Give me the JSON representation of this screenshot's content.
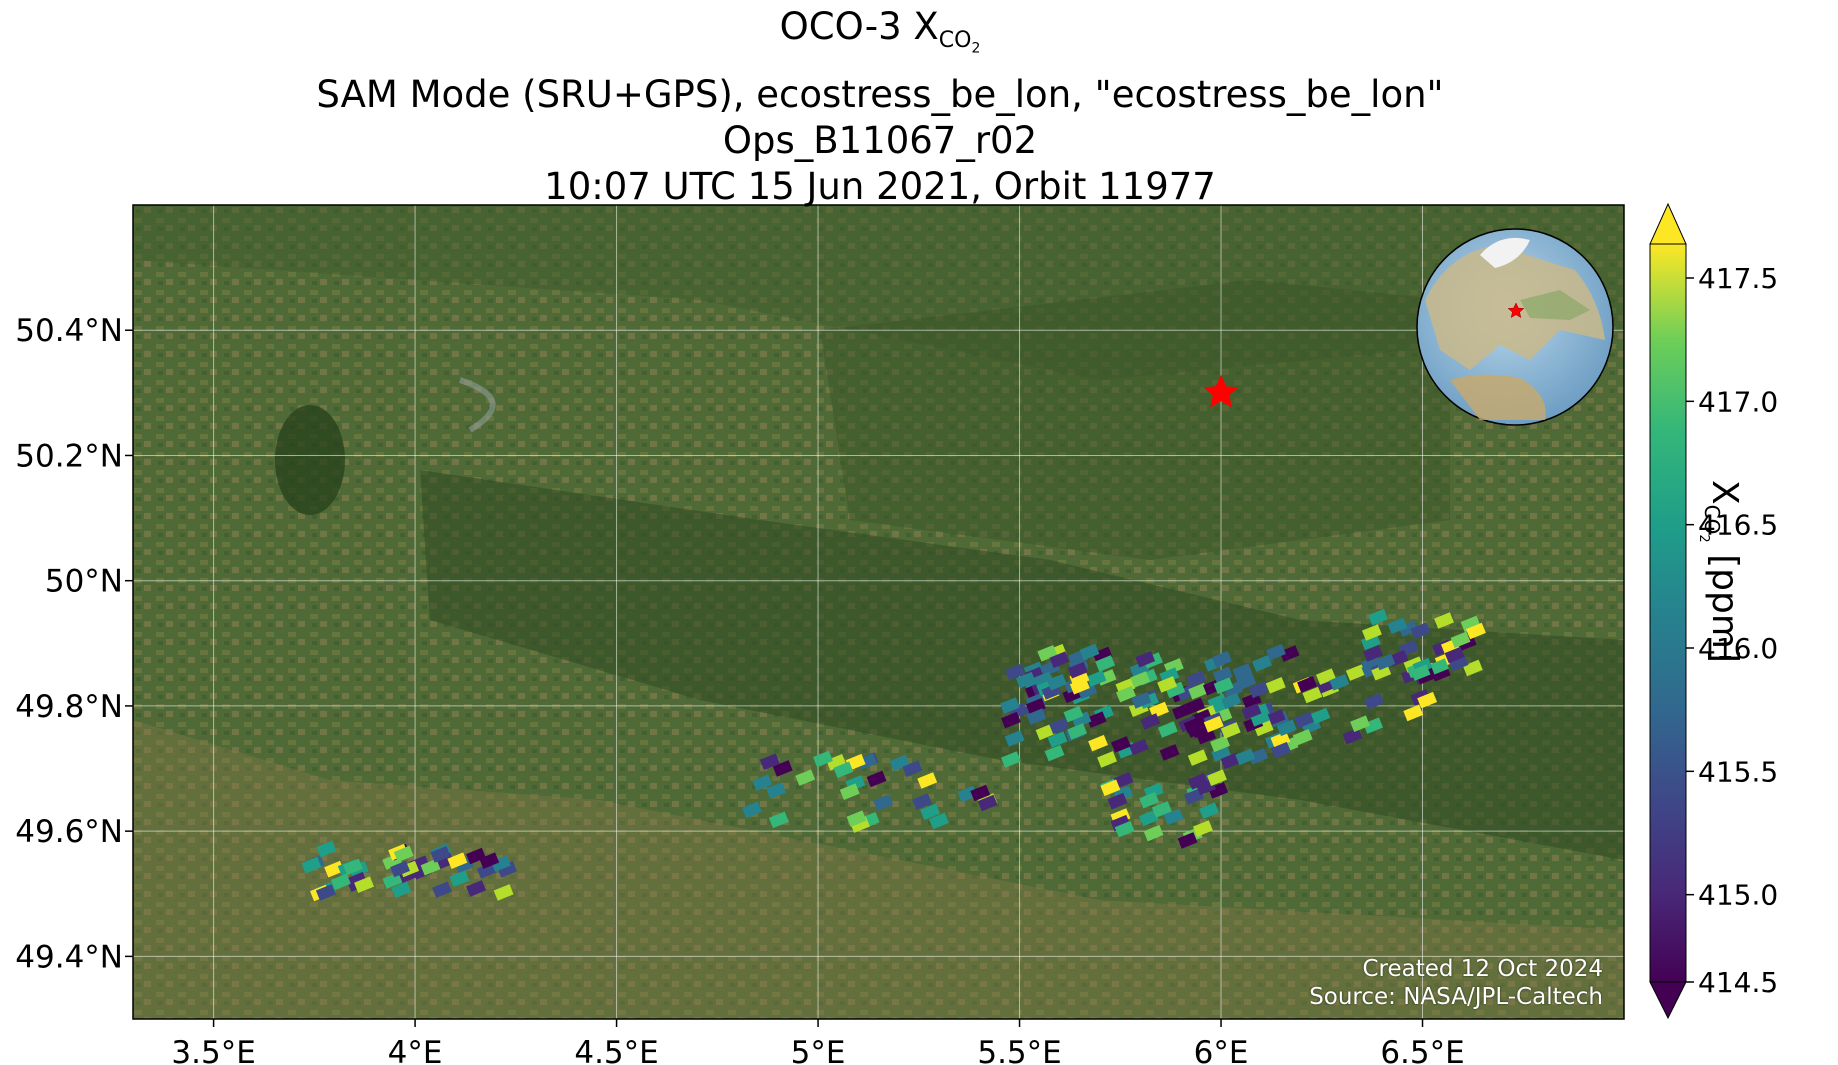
{
  "title": {
    "line1_prefix": "OCO-3 X",
    "line1_sub": "CO",
    "line1_sub2": "2",
    "line2": "SAM Mode (SRU+GPS), ecostress_be_lon, \"ecostress_be_lon\"",
    "line3": "Ops_B11067_r02",
    "line4": "10:07 UTC 15 Jun 2021, Orbit 11977"
  },
  "axes": {
    "lon_ticks": [
      "3.5°E",
      "4°E",
      "4.5°E",
      "5°E",
      "5.5°E",
      "6°E",
      "6.5°E"
    ],
    "lat_ticks": [
      "50.4°N",
      "50.2°N",
      "50°N",
      "49.8°N",
      "49.6°N",
      "49.4°N"
    ]
  },
  "colorbar": {
    "title_prefix": "X",
    "title_sub": "CO",
    "title_sub2": "2",
    "title_suffix": " [ppm]",
    "ticks": [
      "414.5",
      "415.0",
      "415.5",
      "416.0",
      "416.5",
      "417.0",
      "417.5"
    ],
    "min": 414.5,
    "max": 417.8,
    "colormap": "viridis"
  },
  "target_marker": {
    "color": "#ff0000",
    "icon": "star-icon"
  },
  "credit": {
    "created": "Created 12 Oct 2024",
    "source": "Source: NASA/JPL-Caltech"
  },
  "map": {
    "lon_range": [
      3.3,
      7.0
    ],
    "lat_range": [
      49.3,
      50.6
    ],
    "target": {
      "lon": 6.0,
      "lat": 50.3
    }
  }
}
